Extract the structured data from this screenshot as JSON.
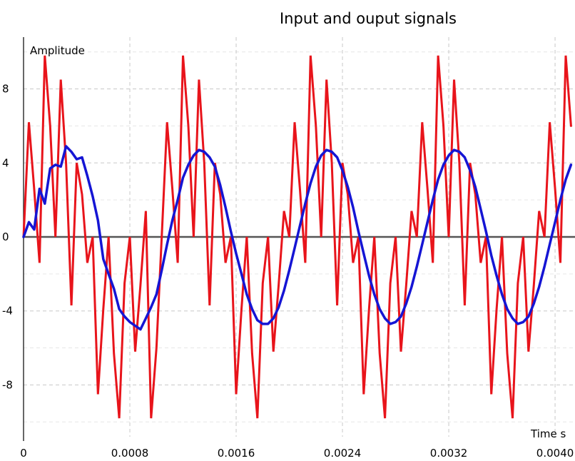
{
  "chart_data": {
    "type": "line",
    "title": "Input and ouput signals",
    "xlabel": "Time s",
    "ylabel": "Amplitude",
    "xlim": [
      0,
      0.00415
    ],
    "ylim": [
      -10.8,
      10.8
    ],
    "x_ticks": [
      0,
      0.0008,
      0.0016,
      0.0024,
      0.0032,
      0.004
    ],
    "x_tick_labels": [
      "0",
      "0.0008",
      "0.0016",
      "0.0024",
      "0.0032",
      "0.0040"
    ],
    "y_ticks": [
      -8,
      -4,
      0,
      4,
      8
    ],
    "y_tick_labels": [
      "-8",
      "-4",
      "0",
      "4",
      "8"
    ],
    "grid": true,
    "legend": "none",
    "series": [
      {
        "color": "#e8141b",
        "style": "input-sampled",
        "x": [
          0.0,
          4e-05,
          8e-05,
          0.00012,
          0.00016,
          0.0002,
          0.00024,
          0.00028,
          0.00032,
          0.00036,
          0.0004,
          0.00044,
          0.00048,
          0.00052,
          0.00056,
          0.0006,
          0.00064,
          0.00068,
          0.00072,
          0.00076,
          0.0008,
          0.00084,
          0.00088,
          0.00092,
          0.00096,
          0.001,
          0.00104,
          0.00108,
          0.00112,
          0.00116,
          0.0012,
          0.00124,
          0.00128,
          0.00132,
          0.00136,
          0.0014,
          0.00144,
          0.00148,
          0.00152,
          0.00156,
          0.0016,
          0.00164,
          0.00168,
          0.00172,
          0.00176,
          0.0018,
          0.00184,
          0.00188,
          0.00192,
          0.00196,
          0.002,
          0.00204,
          0.00208,
          0.00212,
          0.00216,
          0.0022,
          0.00224,
          0.00228,
          0.00232,
          0.00236,
          0.0024,
          0.00244,
          0.00248,
          0.00252,
          0.00256,
          0.0026,
          0.00264,
          0.00268,
          0.00272,
          0.00276,
          0.0028,
          0.00284,
          0.00288,
          0.00292,
          0.00296,
          0.003,
          0.00304,
          0.00308,
          0.00312,
          0.00316,
          0.0032,
          0.00324,
          0.00328,
          0.00332,
          0.00336,
          0.0034,
          0.00344,
          0.00348,
          0.00352,
          0.00356,
          0.0036,
          0.00364,
          0.00368,
          0.00372,
          0.00376,
          0.0038,
          0.00384,
          0.00388,
          0.00392,
          0.00396,
          0.004,
          0.00404,
          0.00408,
          0.00412
        ],
        "y": [
          0.0,
          6.2,
          2.6,
          -1.4,
          9.8,
          6.0,
          0.0,
          8.5,
          4.0,
          -3.7,
          4.0,
          2.3,
          -1.4,
          0.0,
          -8.5,
          -3.9,
          0.0,
          -6.3,
          -9.8,
          -2.5,
          0.0,
          -6.2,
          -2.6,
          1.4,
          -9.8,
          -6.0,
          0.0,
          6.2,
          2.6,
          -1.4,
          9.8,
          6.0,
          0.0,
          8.5,
          4.0,
          -3.7,
          4.0,
          2.3,
          -1.4,
          0.0,
          -8.5,
          -3.9,
          0.0,
          -6.3,
          -9.8,
          -2.5,
          0.0,
          -6.2,
          -2.6,
          1.4,
          0.0,
          6.2,
          2.6,
          -1.4,
          9.8,
          6.0,
          0.0,
          8.5,
          4.0,
          -3.7,
          4.0,
          2.3,
          -1.4,
          0.0,
          -8.5,
          -3.9,
          0.0,
          -6.3,
          -9.8,
          -2.5,
          0.0,
          -6.2,
          -2.6,
          1.4,
          0.0,
          6.2,
          2.6,
          -1.4,
          9.8,
          6.0,
          0.0,
          8.5,
          4.0,
          -3.7,
          4.0,
          2.3,
          -1.4,
          0.0,
          -8.5,
          -3.9,
          0.0,
          -6.3,
          -9.8,
          -2.5,
          0.0,
          -6.2,
          -2.6,
          1.4,
          0.0,
          6.2,
          2.6,
          -1.4,
          9.8,
          6.0
        ]
      },
      {
        "color": "#1515d4",
        "style": "output-filtered",
        "x": [
          0.0,
          4e-05,
          8e-05,
          0.00012,
          0.00016,
          0.0002,
          0.00024,
          0.00028,
          0.00032,
          0.00036,
          0.0004,
          0.00044,
          0.00048,
          0.00052,
          0.00056,
          0.0006,
          0.00064,
          0.00068,
          0.00072,
          0.00076,
          0.0008,
          0.00084,
          0.00088,
          0.00092,
          0.00096,
          0.001,
          0.00104,
          0.00108,
          0.00112,
          0.00116,
          0.0012,
          0.00124,
          0.00128,
          0.00132,
          0.00136,
          0.0014,
          0.00144,
          0.00148,
          0.00152,
          0.00156,
          0.0016,
          0.00164,
          0.00168,
          0.00172,
          0.00176,
          0.0018,
          0.00184,
          0.00188,
          0.00192,
          0.00196,
          0.002,
          0.00204,
          0.00208,
          0.00212,
          0.00216,
          0.0022,
          0.00224,
          0.00228,
          0.00232,
          0.00236,
          0.0024,
          0.00244,
          0.00248,
          0.00252,
          0.00256,
          0.0026,
          0.00264,
          0.00268,
          0.00272,
          0.00276,
          0.0028,
          0.00284,
          0.00288,
          0.00292,
          0.00296,
          0.003,
          0.00304,
          0.00308,
          0.00312,
          0.00316,
          0.0032,
          0.00324,
          0.00328,
          0.00332,
          0.00336,
          0.0034,
          0.00344,
          0.00348,
          0.00352,
          0.00356,
          0.0036,
          0.00364,
          0.00368,
          0.00372,
          0.00376,
          0.0038,
          0.00384,
          0.00388,
          0.00392,
          0.00396,
          0.004,
          0.00404,
          0.00408,
          0.00412
        ],
        "y": [
          0.0,
          0.8,
          0.4,
          2.6,
          1.8,
          3.7,
          3.9,
          3.8,
          4.9,
          4.6,
          4.2,
          4.3,
          3.3,
          2.2,
          0.9,
          -1.2,
          -2.0,
          -2.8,
          -3.9,
          -4.3,
          -4.6,
          -4.8,
          -5.0,
          -4.4,
          -3.8,
          -3.1,
          -1.8,
          -0.4,
          0.9,
          2.0,
          3.2,
          3.9,
          4.4,
          4.7,
          4.6,
          4.3,
          3.8,
          2.8,
          1.6,
          0.3,
          -0.9,
          -2.0,
          -3.1,
          -3.9,
          -4.5,
          -4.7,
          -4.7,
          -4.4,
          -3.8,
          -2.9,
          -1.8,
          -0.6,
          0.6,
          1.8,
          2.9,
          3.8,
          4.4,
          4.7,
          4.6,
          4.3,
          3.6,
          2.7,
          1.6,
          0.3,
          -0.9,
          -2.1,
          -3.1,
          -3.9,
          -4.4,
          -4.7,
          -4.6,
          -4.3,
          -3.6,
          -2.7,
          -1.6,
          -0.4,
          0.8,
          2.0,
          3.1,
          3.9,
          4.4,
          4.7,
          4.6,
          4.3,
          3.6,
          2.7,
          1.5,
          0.3,
          -1.0,
          -2.1,
          -3.1,
          -3.9,
          -4.4,
          -4.7,
          -4.6,
          -4.3,
          -3.6,
          -2.7,
          -1.6,
          -0.4,
          0.8,
          2.0,
          3.1,
          3.9
        ]
      }
    ]
  }
}
